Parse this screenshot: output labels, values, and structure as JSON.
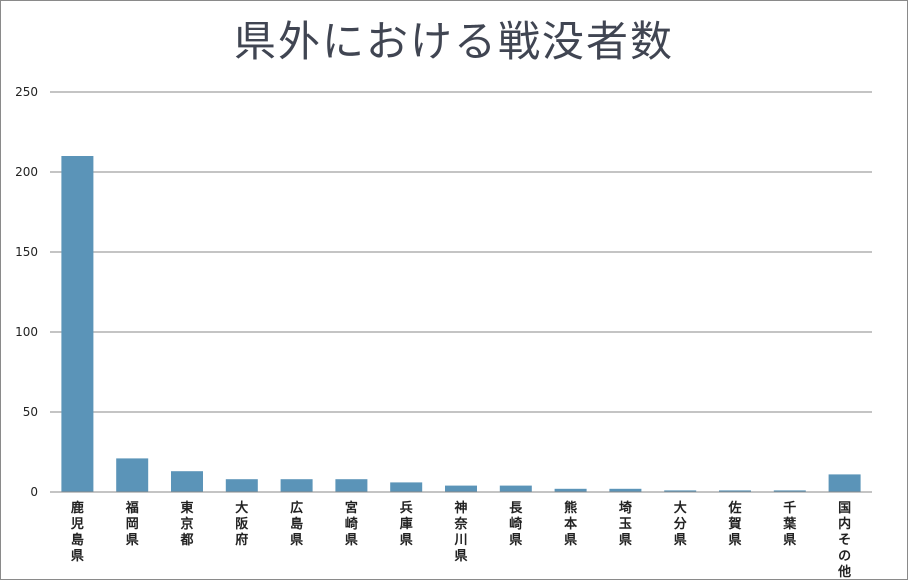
{
  "chart_data": {
    "type": "bar",
    "title": "県外における戦没者数",
    "xlabel": "",
    "ylabel": "",
    "ylim": [
      0,
      250
    ],
    "yticks": [
      0,
      50,
      100,
      150,
      200,
      250
    ],
    "grid": true,
    "legend": "none",
    "bar_color": "#5b94b8",
    "categories": [
      "鹿児島県",
      "福岡県",
      "東京都",
      "大阪府",
      "広島県",
      "宮崎県",
      "兵庫県",
      "神奈川県",
      "長崎県",
      "熊本県",
      "埼玉県",
      "大分県",
      "佐賀県",
      "千葉県",
      "国内その他"
    ],
    "values": [
      210,
      21,
      13,
      8,
      8,
      8,
      6,
      4,
      4,
      2,
      2,
      1,
      1,
      1,
      11
    ]
  }
}
